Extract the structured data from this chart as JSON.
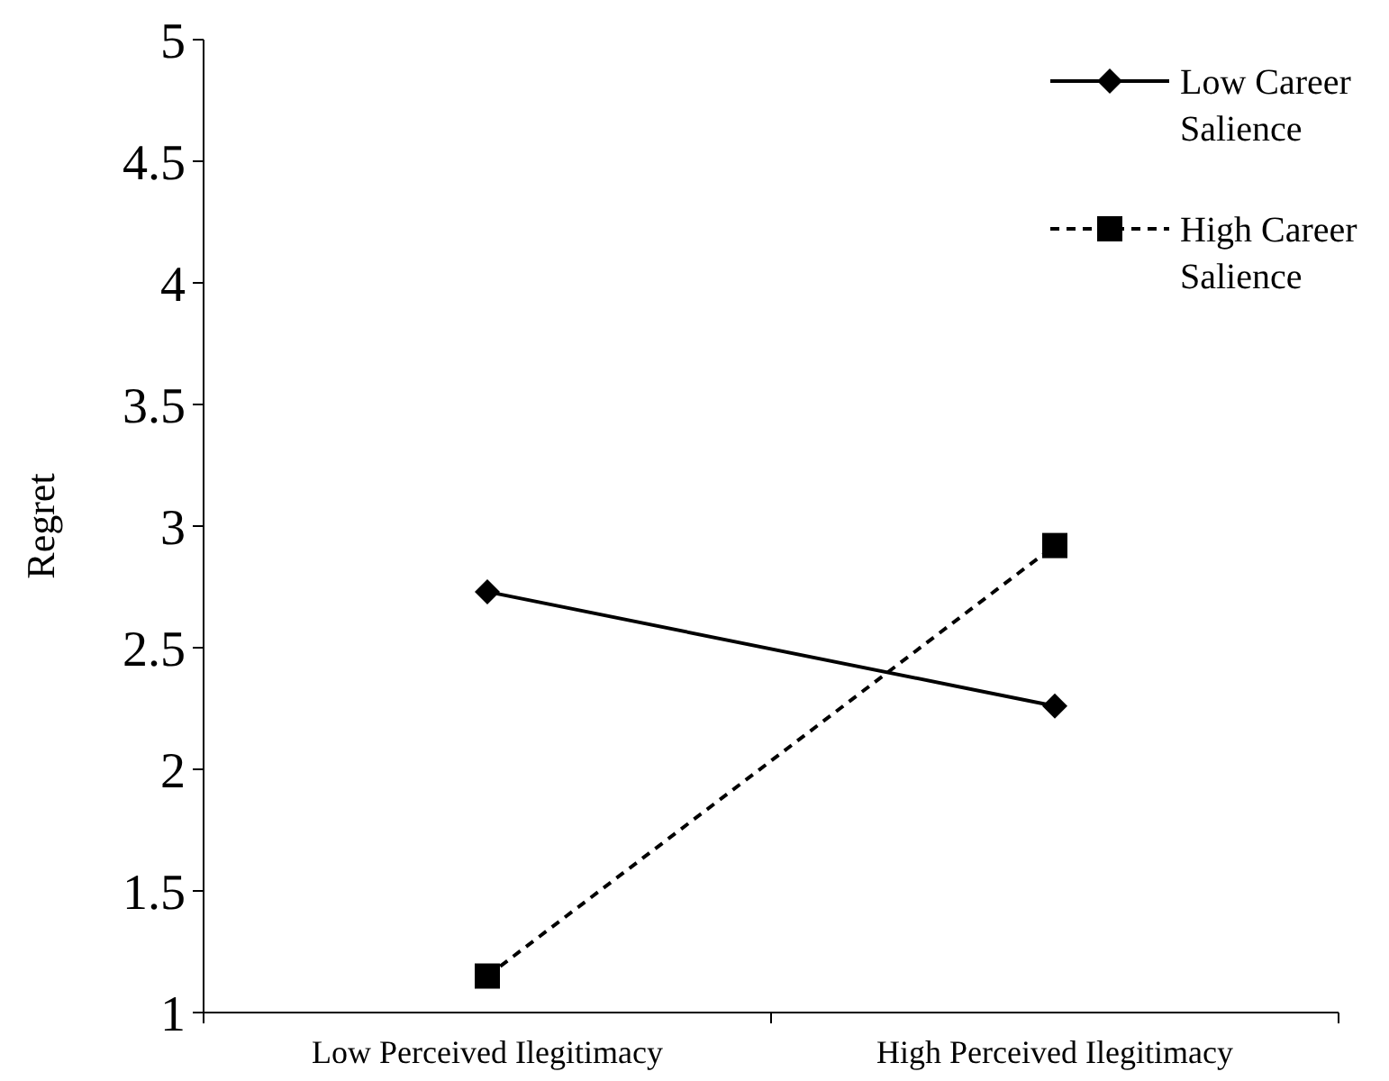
{
  "chart_data": {
    "type": "line",
    "ylabel": "Regret",
    "categories": [
      "Low Perceived Ilegitimacy",
      "High Perceived Ilegitimacy"
    ],
    "series": [
      {
        "name": "Low Career Salience",
        "color": "#000000",
        "values": [
          2.73,
          2.26
        ],
        "marker": "diamond",
        "line_style": "solid"
      },
      {
        "name": "High Career Salience",
        "color": "#000000",
        "values": [
          1.15,
          2.92
        ],
        "marker": "square",
        "line_style": "dashed"
      }
    ],
    "ylim": [
      1,
      5
    ],
    "yticks": [
      1,
      1.5,
      2,
      2.5,
      3,
      3.5,
      4,
      4.5,
      5
    ],
    "legend": "top right",
    "grid": false
  }
}
